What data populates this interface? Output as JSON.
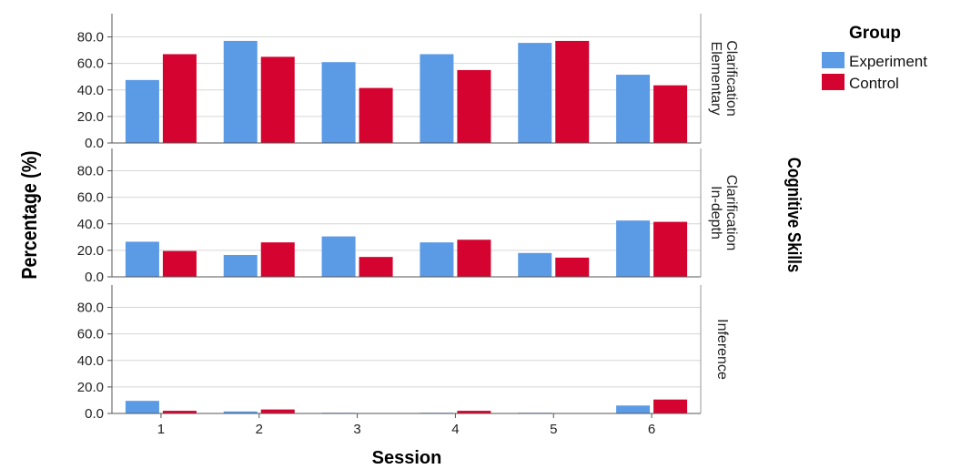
{
  "chart_data": {
    "type": "bar",
    "x_axis_title": "Session",
    "y_axis_title": "Percentage (%)",
    "facet_title": "Cognitive Skills",
    "legend_title": "Group",
    "legend_position": "top-right",
    "categories": [
      "1",
      "2",
      "3",
      "4",
      "5",
      "6"
    ],
    "ylim": [
      0,
      90
    ],
    "y_ticks": [
      "0.0",
      "20.0",
      "40.0",
      "60.0",
      "80.0"
    ],
    "grid": true,
    "colors": {
      "Experiment": "#5b9be6",
      "Control": "#d4032f"
    },
    "series_names": [
      "Experiment",
      "Control"
    ],
    "panels": [
      {
        "label_lines": [
          "Elementary",
          "Clarification"
        ],
        "series": [
          {
            "name": "Experiment",
            "values": [
              47.5,
              77.0,
              61.0,
              67.0,
              75.5,
              51.5
            ]
          },
          {
            "name": "Control",
            "values": [
              67.0,
              65.0,
              41.5,
              55.0,
              77.0,
              43.5
            ]
          }
        ]
      },
      {
        "label_lines": [
          "In-depth",
          "Clarification"
        ],
        "series": [
          {
            "name": "Experiment",
            "values": [
              26.5,
              16.5,
              30.5,
              26.0,
              18.0,
              42.5
            ]
          },
          {
            "name": "Control",
            "values": [
              19.5,
              26.0,
              15.0,
              28.0,
              14.5,
              41.5
            ]
          }
        ]
      },
      {
        "label_lines": [
          "Inference"
        ],
        "series": [
          {
            "name": "Experiment",
            "values": [
              9.5,
              1.5,
              0.5,
              0.5,
              0.5,
              6.0
            ]
          },
          {
            "name": "Control",
            "values": [
              2.0,
              3.0,
              0.0,
              2.0,
              0.0,
              10.5
            ]
          }
        ]
      }
    ]
  }
}
